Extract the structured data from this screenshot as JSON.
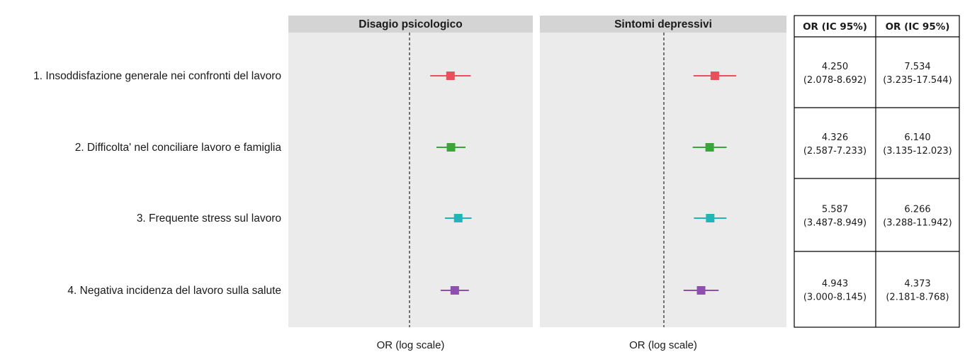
{
  "chart_data": {
    "type": "forest",
    "xlabel": "OR (log scale)",
    "x_scale": "log",
    "reference_line": 1,
    "rows": [
      "1. Insoddisfazione generale nei confronti del lavoro",
      "2. Difficolta' nel conciliare lavoro e famiglia",
      "3. Frequente stress sul lavoro",
      "4. Negativa incidenza del lavoro sulla salute"
    ],
    "colors": [
      "#e8505b",
      "#3aa53a",
      "#21b5b8",
      "#8e4fae"
    ],
    "panels": [
      {
        "title": "Disagio psicologico",
        "estimates": [
          {
            "or": 4.25,
            "lo": 2.078,
            "hi": 8.692
          },
          {
            "or": 4.326,
            "lo": 2.587,
            "hi": 7.233
          },
          {
            "or": 5.587,
            "lo": 3.487,
            "hi": 8.949
          },
          {
            "or": 4.943,
            "lo": 3.0,
            "hi": 8.145
          }
        ]
      },
      {
        "title": "Sintomi depressivi",
        "estimates": [
          {
            "or": 7.534,
            "lo": 3.235,
            "hi": 17.544
          },
          {
            "or": 6.14,
            "lo": 3.135,
            "hi": 12.023
          },
          {
            "or": 6.266,
            "lo": 3.288,
            "hi": 11.942
          },
          {
            "or": 4.373,
            "lo": 2.181,
            "hi": 8.768
          }
        ]
      }
    ]
  },
  "table": {
    "headers": [
      "OR (IC 95%)",
      "OR (IC 95%)"
    ],
    "rows": [
      [
        {
          "value": "4.250",
          "ci": "(2.078-8.692)"
        },
        {
          "value": "7.534",
          "ci": "(3.235-17.544)"
        }
      ],
      [
        {
          "value": "4.326",
          "ci": "(2.587-7.233)"
        },
        {
          "value": "6.140",
          "ci": "(3.135-12.023)"
        }
      ],
      [
        {
          "value": "5.587",
          "ci": "(3.487-8.949)"
        },
        {
          "value": "6.266",
          "ci": "(3.288-11.942)"
        }
      ],
      [
        {
          "value": "4.943",
          "ci": "(3.000-8.145)"
        },
        {
          "value": "4.373",
          "ci": "(2.181-8.768)"
        }
      ]
    ]
  }
}
